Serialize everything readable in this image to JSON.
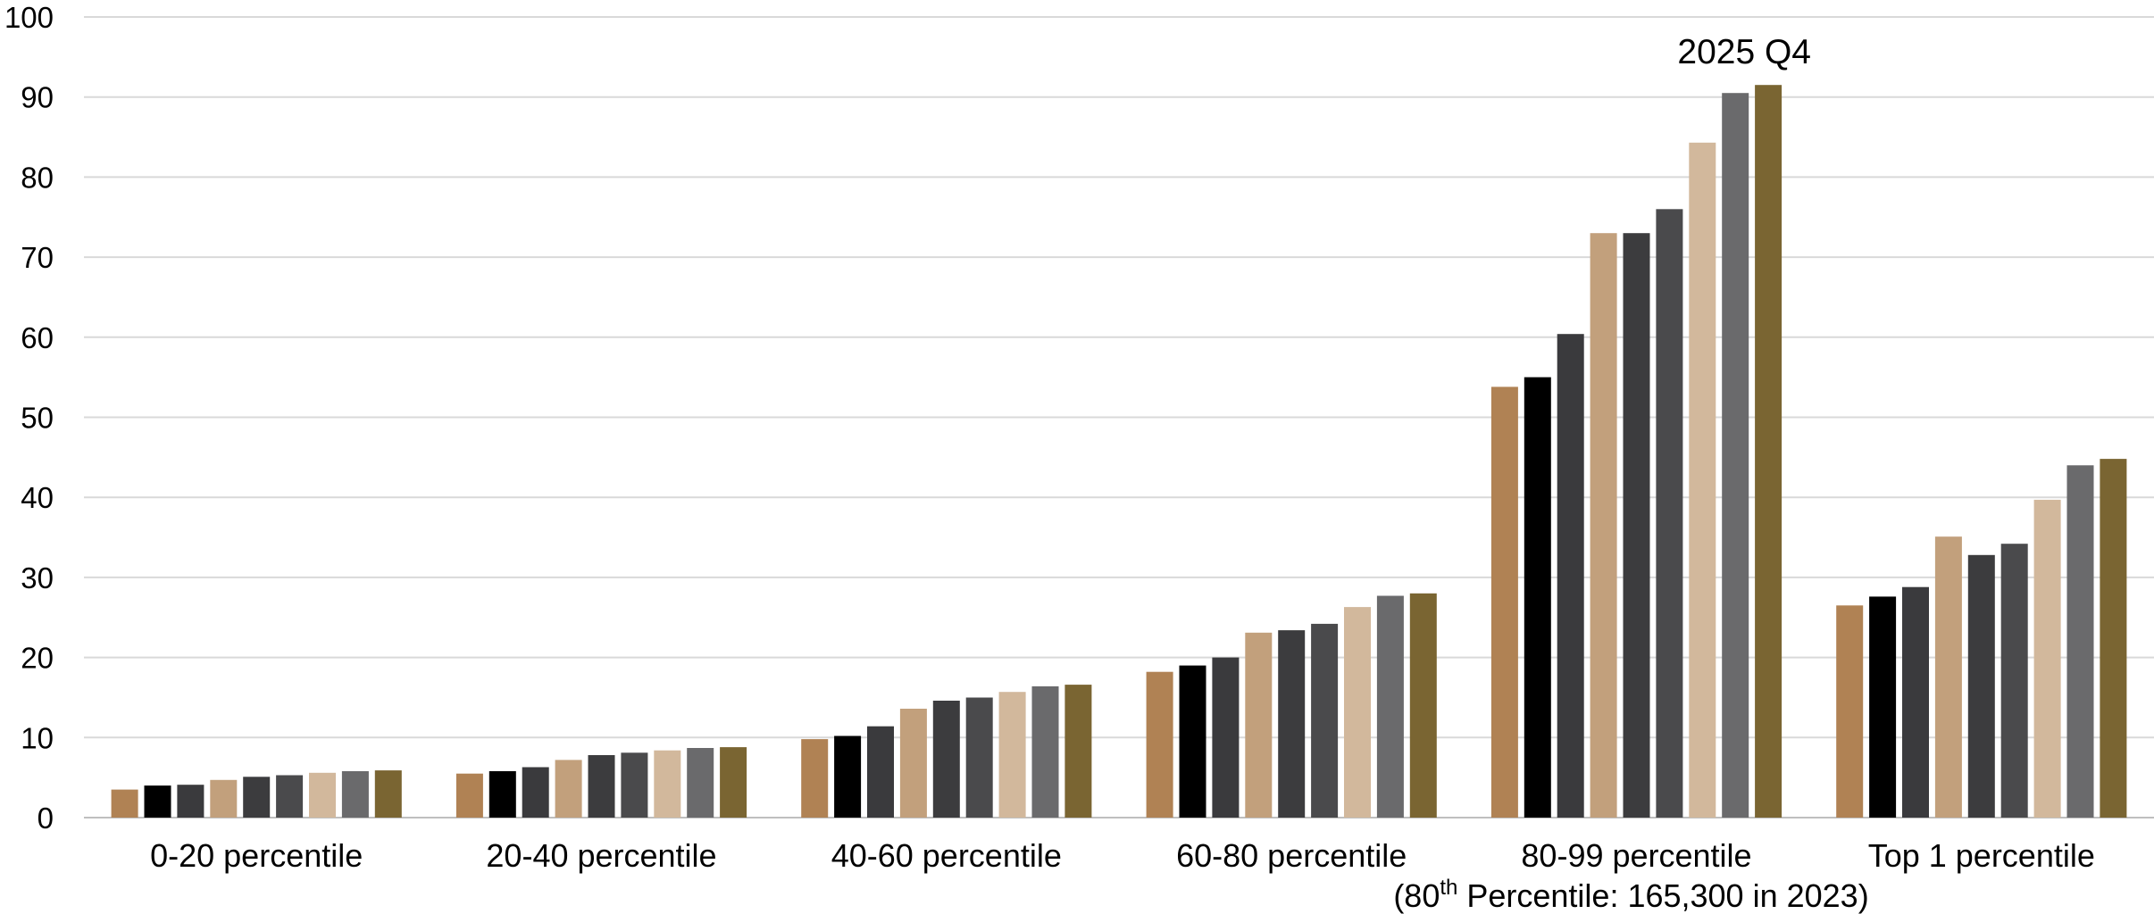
{
  "chart_data": {
    "type": "bar",
    "ylim": [
      0,
      100
    ],
    "yticks": [
      0,
      10,
      20,
      30,
      40,
      50,
      60,
      70,
      80,
      90,
      100
    ],
    "grid": true,
    "categories": [
      "0-20 percentile",
      "20-40 percentile",
      "40-60 percentile",
      "60-80 percentile",
      "80-99 percentile",
      "Top 1 percentile"
    ],
    "category_note": {
      "prefix": "(80",
      "superscript": "th",
      "suffix": " Percentile: 165,300 in 2023)"
    },
    "annotation": "2025 Q4",
    "series": [
      {
        "color": "#B08254",
        "values": [
          3.5,
          5.5,
          9.8,
          18.2,
          53.8,
          26.5
        ]
      },
      {
        "color": "#000000",
        "values": [
          4.0,
          5.8,
          10.2,
          19.0,
          55.0,
          27.6
        ]
      },
      {
        "color": "#3A3A3D",
        "values": [
          4.1,
          6.3,
          11.4,
          20.0,
          60.4,
          28.8
        ]
      },
      {
        "color": "#C2A07C",
        "values": [
          4.7,
          7.2,
          13.6,
          23.1,
          73.0,
          35.1
        ]
      },
      {
        "color": "#3C3C3E",
        "values": [
          5.1,
          7.8,
          14.6,
          23.4,
          73.0,
          32.8
        ]
      },
      {
        "color": "#4A4A4C",
        "values": [
          5.3,
          8.1,
          15.0,
          24.2,
          76.0,
          34.2
        ]
      },
      {
        "color": "#D2B89C",
        "values": [
          5.6,
          8.4,
          15.7,
          26.3,
          84.3,
          39.7
        ]
      },
      {
        "color": "#6A6A6C",
        "values": [
          5.8,
          8.7,
          16.4,
          27.7,
          90.5,
          44.0
        ]
      },
      {
        "color": "#7A6532",
        "values": [
          5.9,
          8.8,
          16.6,
          28.0,
          91.5,
          44.8
        ]
      }
    ]
  }
}
